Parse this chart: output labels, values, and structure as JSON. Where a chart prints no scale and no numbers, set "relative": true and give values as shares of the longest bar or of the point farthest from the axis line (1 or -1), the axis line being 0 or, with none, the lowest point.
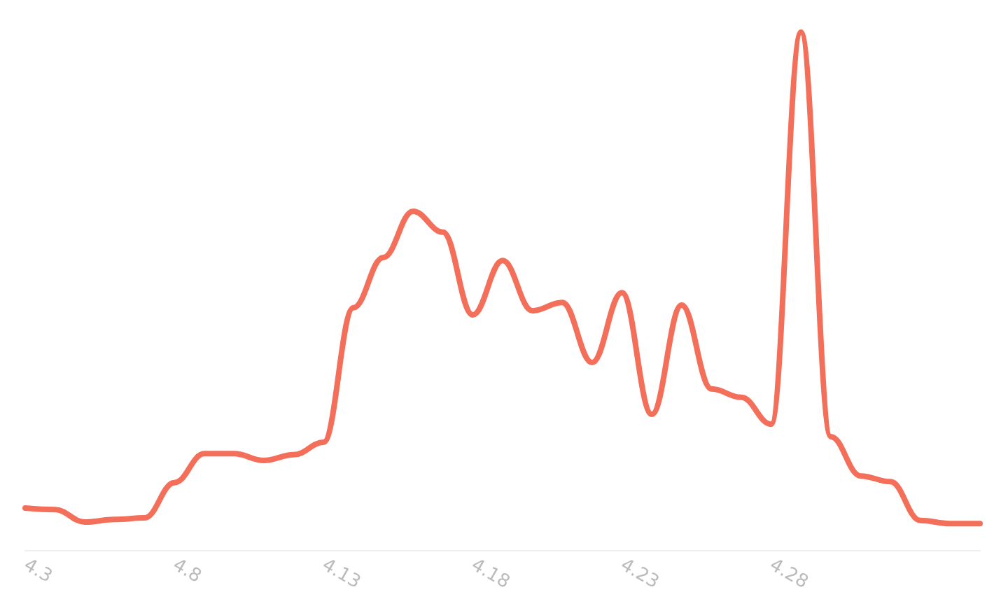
{
  "chart_data": {
    "type": "line",
    "relative": true,
    "categories": [
      "4.3",
      null,
      null,
      null,
      null,
      "4.8",
      null,
      null,
      null,
      null,
      "4.13",
      null,
      null,
      null,
      null,
      "4.18",
      null,
      null,
      null,
      null,
      "4.23",
      null,
      null,
      null,
      null,
      "4.28",
      null,
      null,
      null,
      null,
      null,
      null,
      null
    ],
    "series": [
      {
        "color": "#f36f5a",
        "values": [
          0.081,
          0.078,
          0.054,
          0.059,
          0.062,
          0.13,
          0.186,
          0.186,
          0.173,
          0.184,
          0.208,
          0.468,
          0.565,
          0.654,
          0.614,
          0.454,
          0.559,
          0.462,
          0.478,
          0.362,
          0.497,
          0.262,
          0.473,
          0.311,
          0.295,
          0.243,
          1,
          0.219,
          0.143,
          0.132,
          0.057,
          0.051,
          0.051
        ]
      }
    ],
    "marker": "none",
    "line_style": "solid"
  }
}
